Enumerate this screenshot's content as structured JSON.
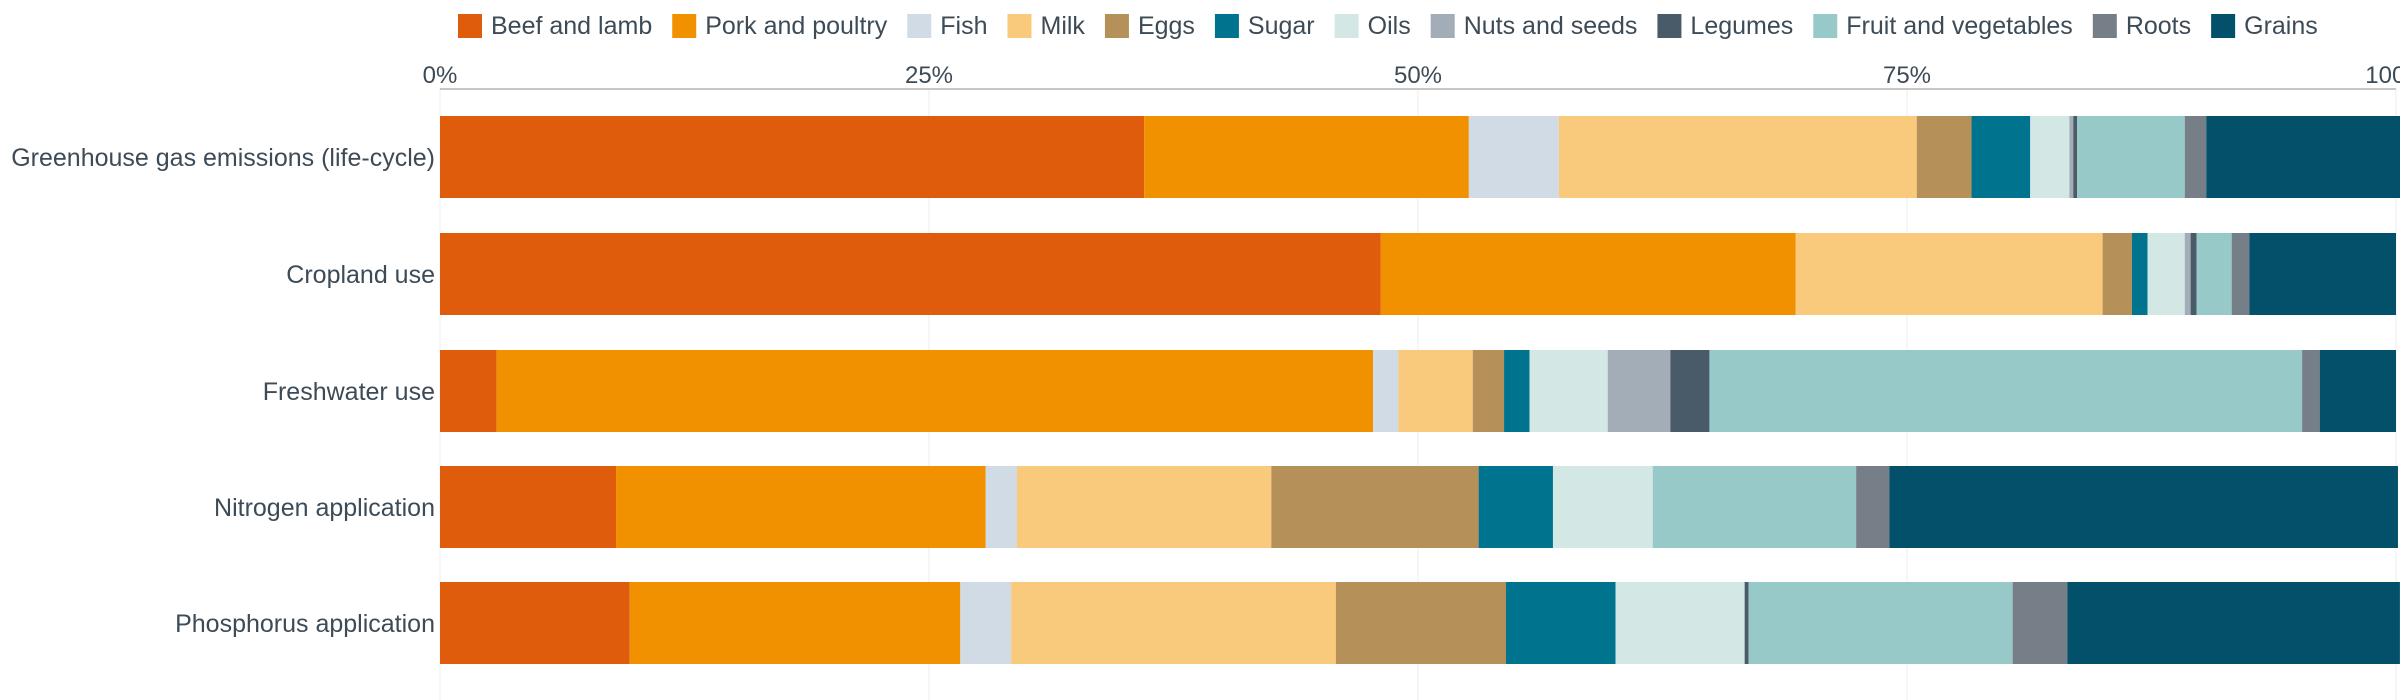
{
  "chart_data": {
    "type": "stacked-bar-horizontal-percent",
    "xlim": [
      0,
      100
    ],
    "x_ticks": [
      "0%",
      "25%",
      "50%",
      "75%",
      "100%"
    ],
    "grid": true,
    "legend_position": "top",
    "categories": [
      "Greenhouse gas emissions (life-cycle)",
      "Cropland use",
      "Freshwater use",
      "Nitrogen application",
      "Phosphorus application"
    ],
    "series": [
      {
        "name": "Beef and lamb",
        "color": "#de5c0b",
        "values": [
          36.0,
          48.1,
          2.9,
          9.0,
          9.7
        ]
      },
      {
        "name": "Pork and poultry",
        "color": "#f29100",
        "values": [
          16.6,
          21.2,
          44.8,
          18.9,
          16.9
        ]
      },
      {
        "name": "Fish",
        "color": "#d0dbe5",
        "values": [
          4.6,
          0.0,
          1.3,
          1.6,
          2.6
        ]
      },
      {
        "name": "Milk",
        "color": "#f9c97c",
        "values": [
          18.3,
          15.7,
          3.8,
          13.0,
          16.6
        ]
      },
      {
        "name": "Eggs",
        "color": "#b59059",
        "values": [
          2.8,
          1.5,
          1.6,
          10.6,
          8.7
        ]
      },
      {
        "name": "Sugar",
        "color": "#00738f",
        "values": [
          3.0,
          0.8,
          1.3,
          3.8,
          5.6
        ]
      },
      {
        "name": "Oils",
        "color": "#d3e8e5",
        "values": [
          2.0,
          1.9,
          4.0,
          5.1,
          6.6
        ]
      },
      {
        "name": "Nuts and seeds",
        "color": "#a2adb7",
        "values": [
          0.2,
          0.3,
          3.2,
          0.0,
          0.0
        ]
      },
      {
        "name": "Legumes",
        "color": "#495b69",
        "values": [
          0.2,
          0.3,
          2.0,
          0.0,
          0.2
        ]
      },
      {
        "name": "Fruit and vegetables",
        "color": "#97c9c8",
        "values": [
          5.5,
          1.8,
          30.3,
          10.4,
          13.5
        ]
      },
      {
        "name": "Roots",
        "color": "#767e88",
        "values": [
          1.1,
          0.9,
          0.9,
          1.7,
          2.8
        ]
      },
      {
        "name": "Grains",
        "color": "#02506a",
        "values": [
          10.2,
          7.5,
          3.9,
          26.0,
          17.0
        ]
      }
    ]
  }
}
